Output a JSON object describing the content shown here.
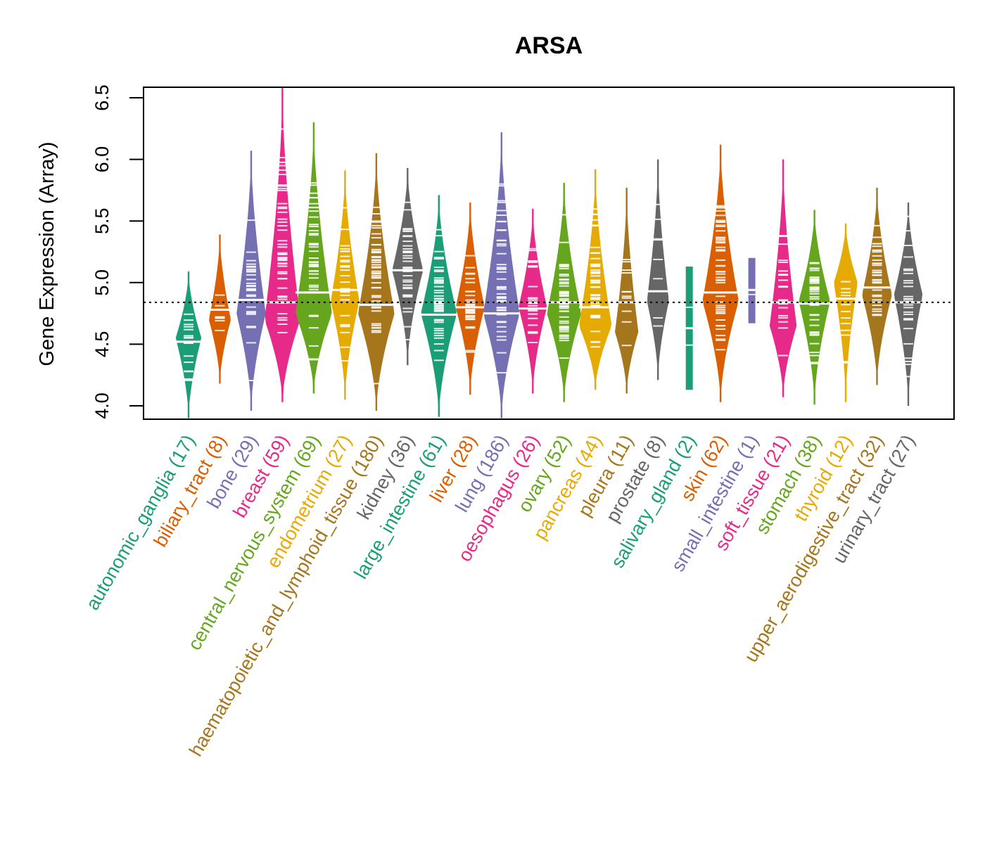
{
  "chart_data": {
    "type": "violin",
    "title": "ARSA",
    "xlabel": "",
    "ylabel": "Gene Expression (Array)",
    "ylim": [
      3.9,
      6.6
    ],
    "yticks": [
      "4.0",
      "4.5",
      "5.0",
      "5.5",
      "6.0",
      "6.5"
    ],
    "ytick_values": [
      4.0,
      4.5,
      5.0,
      5.5,
      6.0,
      6.5
    ],
    "reference_line": 4.84,
    "grid": false,
    "legend": "none",
    "categories": [
      {
        "name": "autonomic_ganglia",
        "n": 17,
        "color": "#1B9E77",
        "min": 3.9,
        "max": 5.09,
        "median": 4.52,
        "widest": 4.55
      },
      {
        "name": "biliary_tract",
        "n": 8,
        "color": "#D95F02",
        "min": 4.18,
        "max": 5.39,
        "median": 4.78,
        "widest": 4.7
      },
      {
        "name": "bone",
        "n": 29,
        "color": "#7570B3",
        "min": 3.96,
        "max": 6.07,
        "median": 4.86,
        "widest": 4.75
      },
      {
        "name": "breast",
        "n": 59,
        "color": "#E7298A",
        "min": 4.03,
        "max": 6.58,
        "median": 4.84,
        "widest": 4.7
      },
      {
        "name": "central_nervous_system",
        "n": 69,
        "color": "#66A61E",
        "min": 4.1,
        "max": 6.3,
        "median": 4.92,
        "widest": 4.75
      },
      {
        "name": "endometrium",
        "n": 27,
        "color": "#E6AB02",
        "min": 4.05,
        "max": 5.91,
        "median": 4.94,
        "widest": 4.85
      },
      {
        "name": "haematopoietic_and_lymphoid_tissue",
        "n": 180,
        "color": "#A6761D",
        "min": 3.96,
        "max": 6.05,
        "median": 4.82,
        "widest": 4.75
      },
      {
        "name": "kidney",
        "n": 36,
        "color": "#666666",
        "min": 4.33,
        "max": 5.93,
        "median": 5.1,
        "widest": 5.1
      },
      {
        "name": "large_intestine",
        "n": 61,
        "color": "#1B9E77",
        "min": 3.91,
        "max": 5.71,
        "median": 4.74,
        "widest": 4.75
      },
      {
        "name": "liver",
        "n": 28,
        "color": "#D95F02",
        "min": 4.09,
        "max": 5.65,
        "median": 4.8,
        "widest": 4.8
      },
      {
        "name": "lung",
        "n": 186,
        "color": "#7570B3",
        "min": 3.9,
        "max": 6.22,
        "median": 4.75,
        "widest": 4.75
      },
      {
        "name": "oesophagus",
        "n": 26,
        "color": "#E7298A",
        "min": 4.1,
        "max": 5.6,
        "median": 4.79,
        "widest": 4.8
      },
      {
        "name": "ovary",
        "n": 52,
        "color": "#66A61E",
        "min": 4.03,
        "max": 5.81,
        "median": 4.84,
        "widest": 4.75
      },
      {
        "name": "pancreas",
        "n": 44,
        "color": "#E6AB02",
        "min": 4.13,
        "max": 5.92,
        "median": 4.8,
        "widest": 4.65
      },
      {
        "name": "pleura",
        "n": 11,
        "color": "#A6761D",
        "min": 4.1,
        "max": 5.77,
        "median": 4.84,
        "widest": 4.6
      },
      {
        "name": "prostate",
        "n": 8,
        "color": "#666666",
        "min": 4.21,
        "max": 6.0,
        "median": 4.93,
        "widest": 4.85
      },
      {
        "name": "salivary_gland",
        "n": 2,
        "color": "#1B9E77",
        "min": 4.13,
        "max": 5.13,
        "median": 4.63,
        "widest": 4.85
      },
      {
        "name": "skin",
        "n": 62,
        "color": "#D95F02",
        "min": 4.03,
        "max": 6.12,
        "median": 4.92,
        "widest": 4.85
      },
      {
        "name": "small_intestine",
        "n": 1,
        "color": "#7570B3",
        "min": 4.67,
        "max": 5.2,
        "median": 4.94,
        "widest": 4.94
      },
      {
        "name": "soft_tissue",
        "n": 21,
        "color": "#E7298A",
        "min": 4.07,
        "max": 6.0,
        "median": 4.84,
        "widest": 4.65
      },
      {
        "name": "stomach",
        "n": 38,
        "color": "#66A61E",
        "min": 4.01,
        "max": 5.59,
        "median": 4.83,
        "widest": 4.85
      },
      {
        "name": "thyroid",
        "n": 12,
        "color": "#E6AB02",
        "min": 4.03,
        "max": 5.48,
        "median": 4.87,
        "widest": 5.0
      },
      {
        "name": "upper_aerodigestive_tract",
        "n": 32,
        "color": "#A6761D",
        "min": 4.17,
        "max": 5.77,
        "median": 4.96,
        "widest": 4.9
      },
      {
        "name": "urinary_tract",
        "n": 27,
        "color": "#666666",
        "min": 4.0,
        "max": 5.65,
        "median": 4.84,
        "widest": 4.9
      }
    ]
  }
}
